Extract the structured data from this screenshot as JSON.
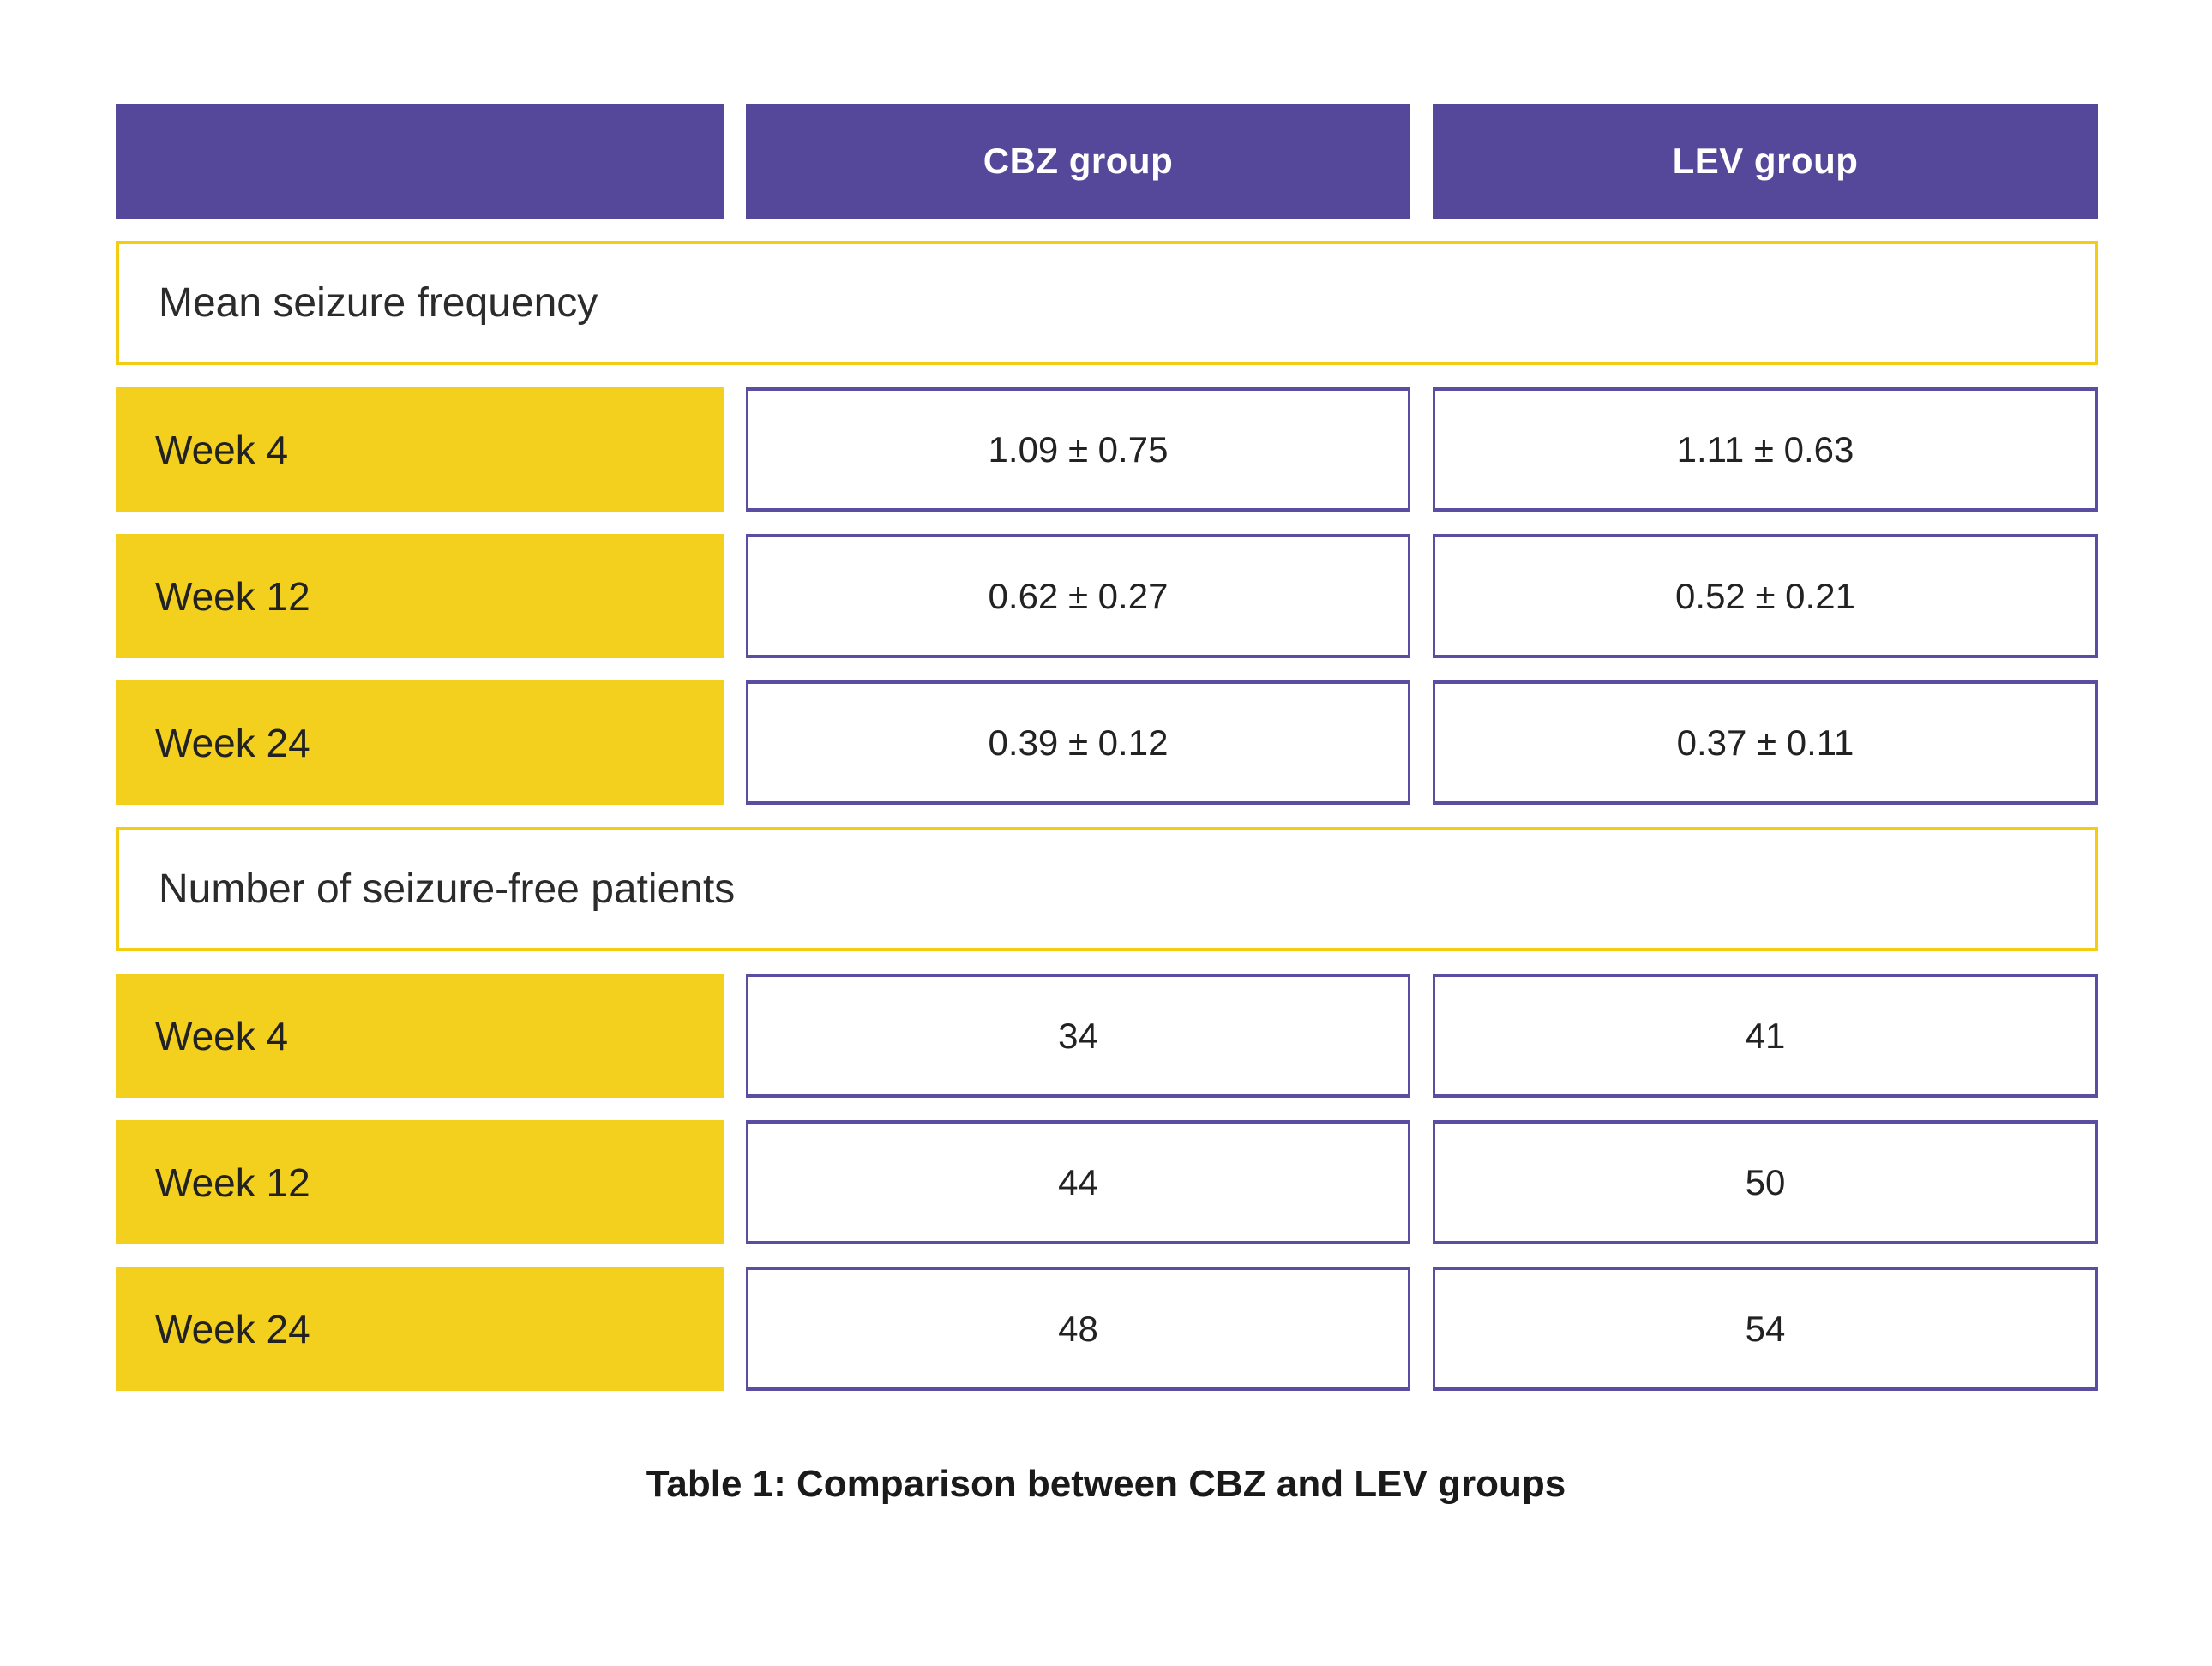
{
  "chart_data": {
    "type": "table",
    "title": "Table 1: Comparison between CBZ and LEV groups",
    "columns": [
      "",
      "CBZ group",
      "LEV group"
    ],
    "sections": [
      {
        "label": "Mean seizure frequency",
        "rows": [
          [
            "Week 4",
            "1.09 ± 0.75",
            "1.11 ± 0.63"
          ],
          [
            "Week 12",
            "0.62 ± 0.27",
            "0.52 ± 0.21"
          ],
          [
            "Week 24",
            "0.39 ± 0.12",
            "0.37 ± 0.11"
          ]
        ]
      },
      {
        "label": "Number of seizure-free patients",
        "rows": [
          [
            "Week 4",
            "34",
            "41"
          ],
          [
            "Week 12",
            "44",
            "50"
          ],
          [
            "Week 24",
            "48",
            "54"
          ]
        ]
      }
    ],
    "layout": {
      "legend": "none",
      "grid": "off",
      "caption_position": "bottom-center"
    }
  },
  "colors": {
    "header_purple": "#55489A",
    "value_border_purple": "#5A4DA2",
    "label_yellow": "#F4D01E",
    "section_border_gold": "#F2CD11",
    "text_dark": "#1e1e1e",
    "header_text": "#ffffff",
    "background": "#ffffff"
  }
}
